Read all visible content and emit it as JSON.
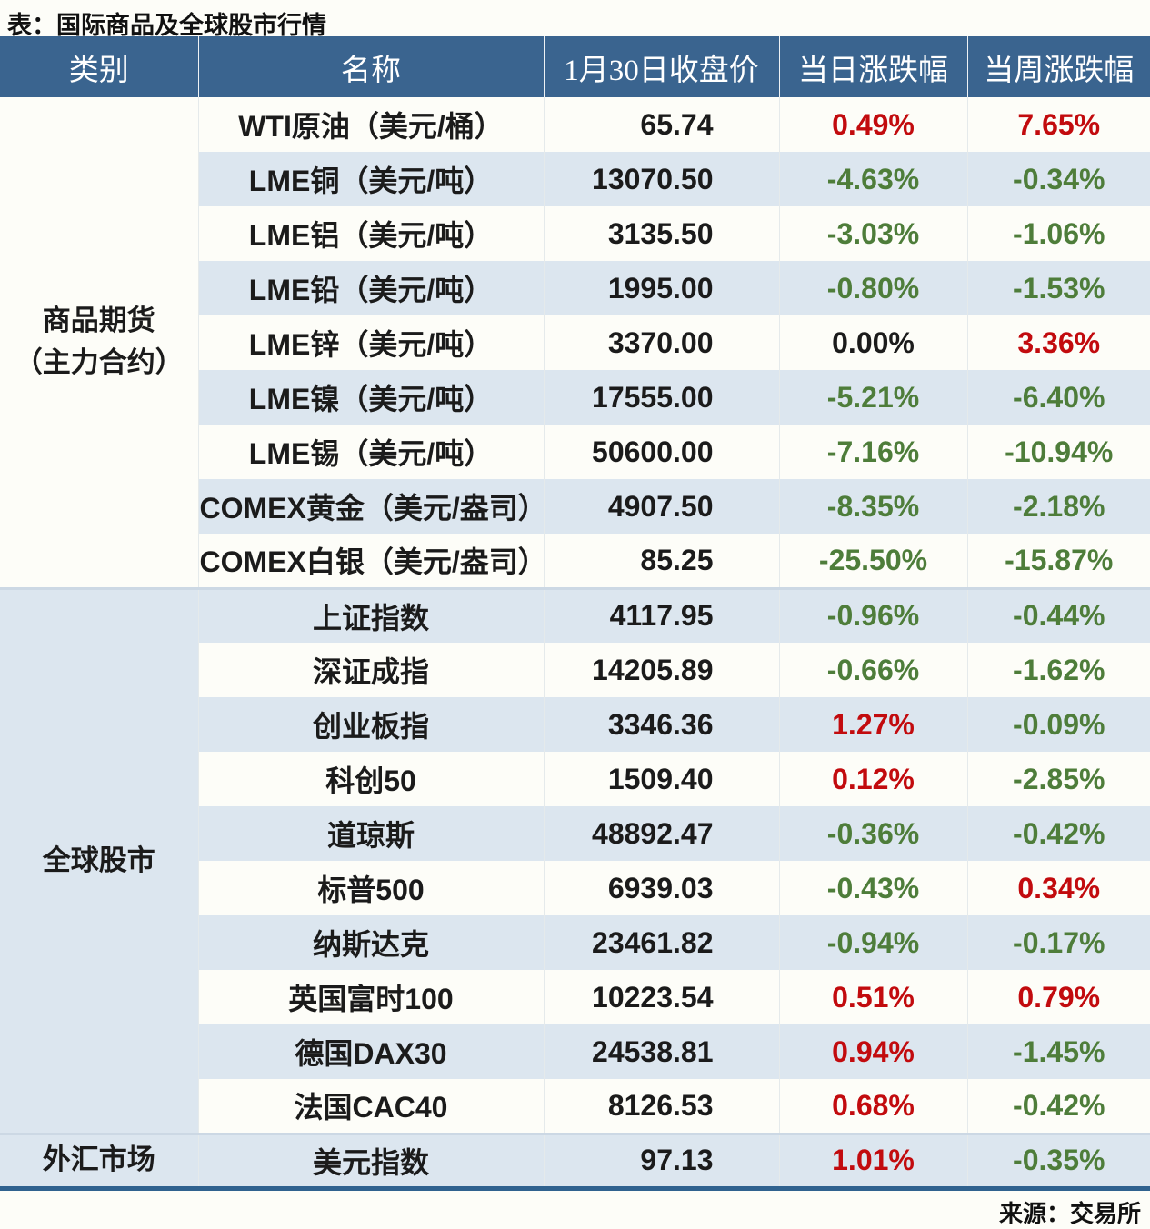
{
  "chart_data": {
    "type": "table",
    "title": "表：国际商品及全球股市行情",
    "source": "来源：交易所",
    "columns": [
      "类别",
      "名称",
      "1月30日收盘价",
      "当日涨跌幅",
      "当周涨跌幅"
    ],
    "groups": [
      {
        "category": "商品期货\n（主力合约）",
        "rows": [
          {
            "name": "WTI原油（美元/桶）",
            "close": "65.74",
            "daily": "0.49%",
            "weekly": "7.65%"
          },
          {
            "name": "LME铜（美元/吨）",
            "close": "13070.50",
            "daily": "-4.63%",
            "weekly": "-0.34%"
          },
          {
            "name": "LME铝（美元/吨）",
            "close": "3135.50",
            "daily": "-3.03%",
            "weekly": "-1.06%"
          },
          {
            "name": "LME铅（美元/吨）",
            "close": "1995.00",
            "daily": "-0.80%",
            "weekly": "-1.53%"
          },
          {
            "name": "LME锌（美元/吨）",
            "close": "3370.00",
            "daily": "0.00%",
            "weekly": "3.36%"
          },
          {
            "name": "LME镍（美元/吨）",
            "close": "17555.00",
            "daily": "-5.21%",
            "weekly": "-6.40%"
          },
          {
            "name": "LME锡（美元/吨）",
            "close": "50600.00",
            "daily": "-7.16%",
            "weekly": "-10.94%"
          },
          {
            "name": "COMEX黄金（美元/盎司）",
            "close": "4907.50",
            "daily": "-8.35%",
            "weekly": "-2.18%"
          },
          {
            "name": "COMEX白银（美元/盎司）",
            "close": "85.25",
            "daily": "-25.50%",
            "weekly": "-15.87%"
          }
        ]
      },
      {
        "category": "全球股市",
        "rows": [
          {
            "name": "上证指数",
            "close": "4117.95",
            "daily": "-0.96%",
            "weekly": "-0.44%"
          },
          {
            "name": "深证成指",
            "close": "14205.89",
            "daily": "-0.66%",
            "weekly": "-1.62%"
          },
          {
            "name": "创业板指",
            "close": "3346.36",
            "daily": "1.27%",
            "weekly": "-0.09%"
          },
          {
            "name": "科创50",
            "close": "1509.40",
            "daily": "0.12%",
            "weekly": "-2.85%"
          },
          {
            "name": "道琼斯",
            "close": "48892.47",
            "daily": "-0.36%",
            "weekly": "-0.42%"
          },
          {
            "name": "标普500",
            "close": "6939.03",
            "daily": "-0.43%",
            "weekly": "0.34%"
          },
          {
            "name": "纳斯达克",
            "close": "23461.82",
            "daily": "-0.94%",
            "weekly": "-0.17%"
          },
          {
            "name": "英国富时100",
            "close": "10223.54",
            "daily": "0.51%",
            "weekly": "0.79%"
          },
          {
            "name": "德国DAX30",
            "close": "24538.81",
            "daily": "0.94%",
            "weekly": "-1.45%"
          },
          {
            "name": "法国CAC40",
            "close": "8126.53",
            "daily": "0.68%",
            "weekly": "-0.42%"
          }
        ]
      },
      {
        "category": "外汇市场",
        "rows": [
          {
            "name": "美元指数",
            "close": "97.13",
            "daily": "1.01%",
            "weekly": "-0.35%"
          }
        ]
      }
    ],
    "colors": {
      "header_bg": "#3a648f",
      "row_alt": "#dce6ef",
      "row_plain": "#fdfdf8",
      "positive_red": "#c20b0e",
      "negative_green": "#4e7d3a",
      "zero_black": "#1b1b1b",
      "bottom_border": "#30628f",
      "group_divider": "#ccd8e4"
    }
  }
}
